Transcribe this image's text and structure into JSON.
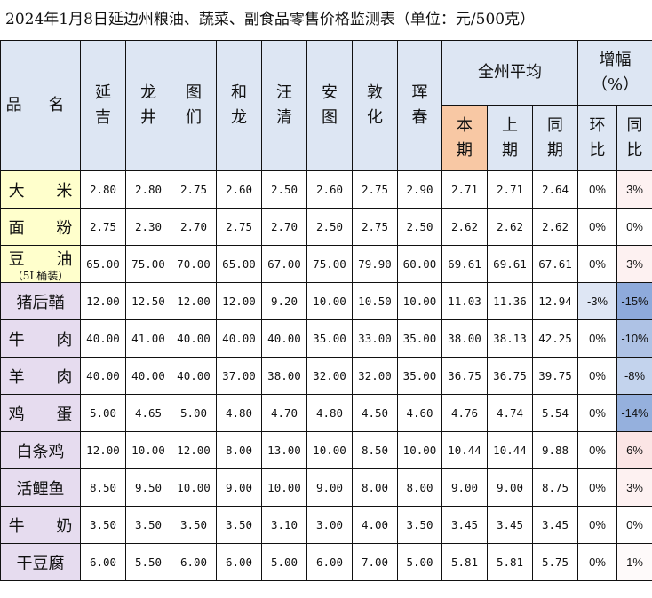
{
  "title": "2024年1月8日延边州粮油、蔬菜、副食品零售价格监测表（单位：元/500克）",
  "header": {
    "name": "品 名",
    "cities": [
      "延\n吉",
      "龙\n井",
      "图\n们",
      "和\n龙",
      "汪\n清",
      "安\n图",
      "敦\n化",
      "珲\n春"
    ],
    "avg_group": "全州平均",
    "avg_cols": [
      "本\n期",
      "上\n期",
      "同\n期"
    ],
    "change_group": "增幅\n（%）",
    "change_cols": [
      "环\n比",
      "同\n比"
    ]
  },
  "rows": [
    {
      "name": "大 米",
      "group": "g",
      "v": [
        "2.80",
        "2.80",
        "2.75",
        "2.60",
        "2.50",
        "2.60",
        "2.75",
        "2.90",
        "2.71",
        "2.71",
        "2.64"
      ],
      "mom": "0%",
      "yoy": "3%",
      "mom_color": "#ffffff",
      "yoy_color": "#fdf1f1"
    },
    {
      "name": "面 粉",
      "group": "g",
      "v": [
        "2.75",
        "2.30",
        "2.70",
        "2.75",
        "2.70",
        "2.50",
        "2.75",
        "2.50",
        "2.62",
        "2.62",
        "2.62"
      ],
      "mom": "0%",
      "yoy": "0%",
      "mom_color": "#ffffff",
      "yoy_color": "#ffffff"
    },
    {
      "name": "豆 油",
      "sub": "（5L桶装）",
      "group": "g",
      "v": [
        "65.00",
        "75.00",
        "70.00",
        "65.00",
        "67.00",
        "75.00",
        "79.90",
        "60.00",
        "69.61",
        "69.61",
        "67.61"
      ],
      "mom": "0%",
      "yoy": "3%",
      "mom_color": "#ffffff",
      "yoy_color": "#fdf1f1"
    },
    {
      "name": "猪后鞧",
      "group": "p",
      "v": [
        "12.00",
        "12.50",
        "12.00",
        "12.00",
        "9.20",
        "10.00",
        "10.50",
        "10.00",
        "11.03",
        "11.36",
        "12.94"
      ],
      "mom": "-3%",
      "yoy": "-15%",
      "mom_color": "#dee6f4",
      "yoy_color": "#8eaadb"
    },
    {
      "name": "牛 肉",
      "group": "p",
      "v": [
        "40.00",
        "41.00",
        "40.00",
        "40.00",
        "40.00",
        "35.00",
        "33.00",
        "35.00",
        "38.00",
        "38.13",
        "42.25"
      ],
      "mom": "0%",
      "yoy": "-10%",
      "mom_color": "#ffffff",
      "yoy_color": "#aec2e5"
    },
    {
      "name": "羊 肉",
      "group": "p",
      "v": [
        "40.00",
        "40.00",
        "40.00",
        "37.00",
        "38.00",
        "32.00",
        "32.00",
        "35.00",
        "36.75",
        "36.75",
        "39.75"
      ],
      "mom": "0%",
      "yoy": "-8%",
      "mom_color": "#ffffff",
      "yoy_color": "#c3d3ed"
    },
    {
      "name": "鸡 蛋",
      "group": "p",
      "v": [
        "5.00",
        "4.65",
        "5.00",
        "4.80",
        "4.70",
        "4.80",
        "4.50",
        "4.60",
        "4.76",
        "4.74",
        "5.54"
      ],
      "mom": "0%",
      "yoy": "-14%",
      "mom_color": "#ffffff",
      "yoy_color": "#95b0dd"
    },
    {
      "name": "白条鸡",
      "group": "p",
      "v": [
        "12.00",
        "10.00",
        "12.00",
        "8.00",
        "13.00",
        "10.00",
        "8.50",
        "10.00",
        "10.44",
        "10.44",
        "9.88"
      ],
      "mom": "0%",
      "yoy": "6%",
      "mom_color": "#ffffff",
      "yoy_color": "#fbe5e5"
    },
    {
      "name": "活鲤鱼",
      "group": "p",
      "v": [
        "8.50",
        "9.50",
        "10.00",
        "9.00",
        "10.00",
        "9.00",
        "8.00",
        "8.00",
        "9.00",
        "9.00",
        "8.75"
      ],
      "mom": "0%",
      "yoy": "3%",
      "mom_color": "#ffffff",
      "yoy_color": "#fdf1f1"
    },
    {
      "name": "牛 奶",
      "group": "p",
      "v": [
        "3.50",
        "3.50",
        "3.50",
        "3.50",
        "3.10",
        "3.00",
        "4.00",
        "3.50",
        "3.45",
        "3.45",
        "3.45"
      ],
      "mom": "0%",
      "yoy": "0%",
      "mom_color": "#ffffff",
      "yoy_color": "#ffffff"
    },
    {
      "name": "干豆腐",
      "group": "p",
      "v": [
        "6.00",
        "5.50",
        "6.00",
        "6.00",
        "5.00",
        "6.00",
        "7.00",
        "5.00",
        "5.81",
        "5.81",
        "5.75"
      ],
      "mom": "0%",
      "yoy": "1%",
      "mom_color": "#ffffff",
      "yoy_color": "#fefafa"
    }
  ]
}
